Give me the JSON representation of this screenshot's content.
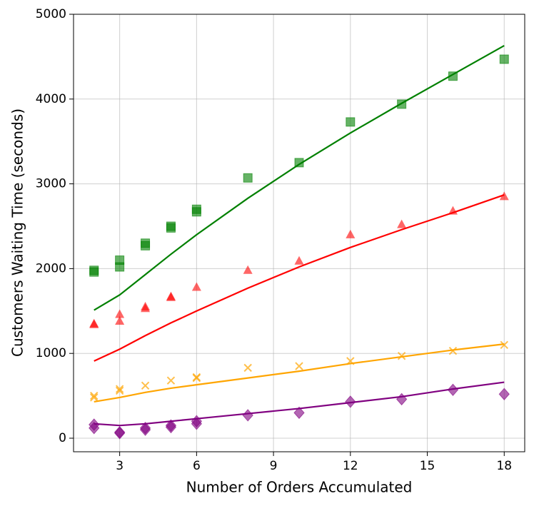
{
  "chart_data": {
    "type": "scatter",
    "x_label": "Number of Orders Accumulated",
    "y_label": "Customers Waiting Time (seconds)",
    "xlim": [
      1.2,
      18.8
    ],
    "ylim": [
      -160,
      5000
    ],
    "xticks": [
      3,
      6,
      9,
      12,
      15,
      18
    ],
    "yticks": [
      0,
      1000,
      2000,
      3000,
      4000,
      5000
    ],
    "grid": true,
    "series": [
      {
        "color": "#008000",
        "marker": "square",
        "x": [
          2,
          2,
          3,
          3,
          4,
          4,
          5,
          5,
          6,
          6,
          8,
          10,
          12,
          14,
          16,
          18
        ],
        "values": [
          1960,
          1980,
          2020,
          2100,
          2270,
          2300,
          2480,
          2500,
          2670,
          2700,
          3070,
          3250,
          3730,
          3940,
          4270,
          4470
        ]
      },
      {
        "color": "#ff0000",
        "marker": "triangle",
        "x": [
          2,
          2,
          3,
          3,
          4,
          4,
          5,
          5,
          6,
          8,
          10,
          12,
          14,
          16,
          18
        ],
        "values": [
          1340,
          1350,
          1380,
          1460,
          1530,
          1550,
          1660,
          1670,
          1780,
          1980,
          2090,
          2400,
          2520,
          2680,
          2850
        ]
      },
      {
        "color": "#ffa500",
        "marker": "x",
        "x": [
          2,
          2,
          3,
          3,
          4,
          5,
          6,
          6,
          8,
          10,
          12,
          14,
          16,
          18
        ],
        "values": [
          480,
          500,
          560,
          580,
          620,
          680,
          710,
          720,
          830,
          850,
          910,
          970,
          1030,
          1100
        ]
      },
      {
        "color": "#800080",
        "marker": "diamond",
        "x": [
          2,
          2,
          3,
          3,
          4,
          4,
          5,
          5,
          6,
          6,
          8,
          10,
          12,
          14,
          16,
          18
        ],
        "values": [
          120,
          160,
          60,
          70,
          100,
          120,
          130,
          150,
          170,
          200,
          270,
          300,
          430,
          460,
          570,
          520
        ]
      },
      {
        "color": "#008000",
        "marker": "line",
        "x": [
          2,
          3,
          4,
          5,
          6,
          8,
          10,
          12,
          14,
          16,
          18
        ],
        "values": [
          1510,
          1690,
          1930,
          2170,
          2400,
          2830,
          3230,
          3600,
          3950,
          4290,
          4630
        ]
      },
      {
        "color": "#ff0000",
        "marker": "line",
        "x": [
          2,
          3,
          4,
          5,
          6,
          8,
          10,
          12,
          14,
          16,
          18
        ],
        "values": [
          910,
          1050,
          1210,
          1360,
          1500,
          1770,
          2020,
          2250,
          2460,
          2660,
          2870
        ]
      },
      {
        "color": "#ffa500",
        "marker": "line",
        "x": [
          2,
          3,
          4,
          5,
          6,
          8,
          10,
          12,
          14,
          16,
          18
        ],
        "values": [
          430,
          480,
          540,
          590,
          630,
          710,
          790,
          880,
          960,
          1040,
          1110
        ]
      },
      {
        "color": "#800080",
        "marker": "line",
        "x": [
          2,
          3,
          4,
          5,
          6,
          8,
          10,
          12,
          14,
          16,
          18
        ],
        "values": [
          170,
          150,
          170,
          200,
          230,
          290,
          350,
          420,
          490,
          580,
          660
        ]
      }
    ]
  }
}
